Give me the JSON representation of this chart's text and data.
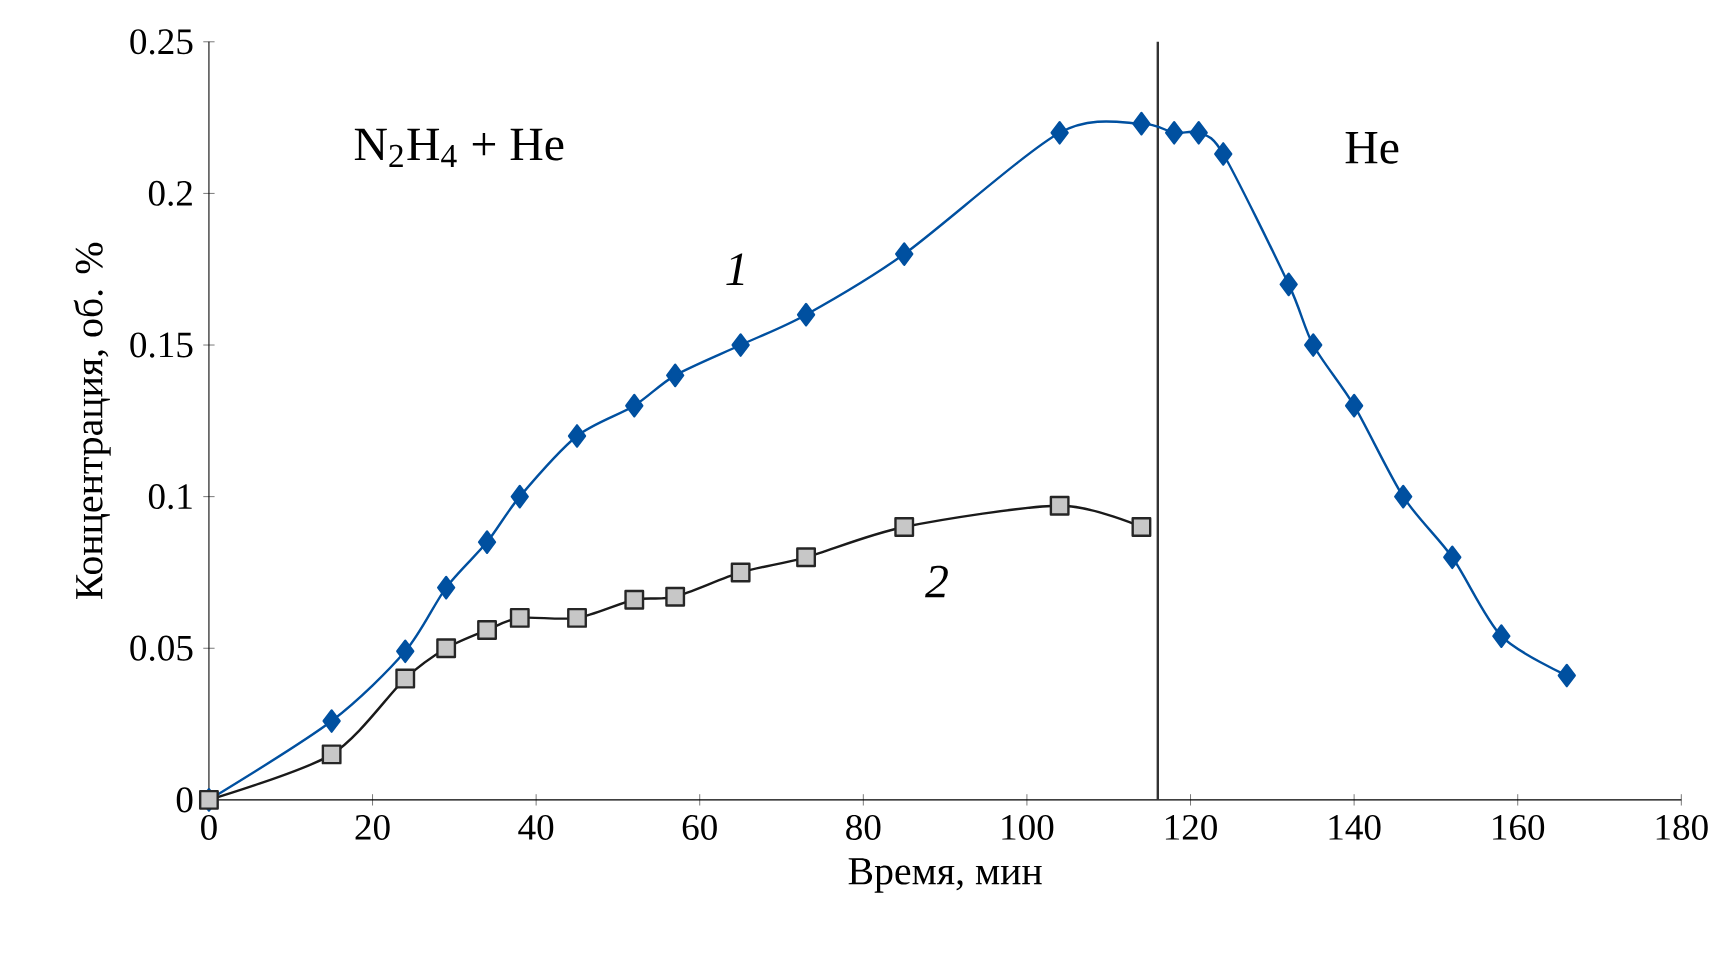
{
  "chart_data": {
    "type": "line",
    "xlabel": "Время, мин",
    "ylabel": "Концентрация, об. %",
    "xlim": [
      0,
      180
    ],
    "xticks": [
      0,
      20,
      40,
      60,
      80,
      100,
      120,
      140,
      160,
      180
    ],
    "ylim": [
      0,
      0.25
    ],
    "yticks": [
      0,
      0.05,
      0.1,
      0.15,
      0.2,
      0.25
    ],
    "annotations": [
      "N$_{2}$H$_{4}$ + He",
      "He"
    ],
    "ref_lines": [
      {
        "axis": "x",
        "value": 116,
        "color": "#333333"
      }
    ],
    "series": [
      {
        "name": "1",
        "color": "#0050a0",
        "marker": "diamond",
        "x": [
          0,
          15,
          24,
          29,
          34,
          38,
          45,
          52,
          57,
          65,
          73,
          85,
          104,
          114,
          118,
          121,
          124,
          132,
          135,
          140,
          146,
          152,
          158,
          166
        ],
        "values": [
          0,
          0.026,
          0.049,
          0.07,
          0.085,
          0.1,
          0.12,
          0.13,
          0.14,
          0.15,
          0.16,
          0.18,
          0.22,
          0.223,
          0.22,
          0.22,
          0.213,
          0.17,
          0.15,
          0.13,
          0.1,
          0.08,
          0.054,
          0.041
        ]
      },
      {
        "name": "2",
        "color": "#1a1a1a",
        "marker": "square",
        "x": [
          0,
          15,
          24,
          29,
          34,
          38,
          45,
          52,
          57,
          65,
          73,
          85,
          104,
          114
        ],
        "values": [
          0,
          0.015,
          0.04,
          0.05,
          0.056,
          0.06,
          0.06,
          0.066,
          0.067,
          0.075,
          0.08,
          0.09,
          0.097,
          0.09
        ]
      }
    ]
  }
}
